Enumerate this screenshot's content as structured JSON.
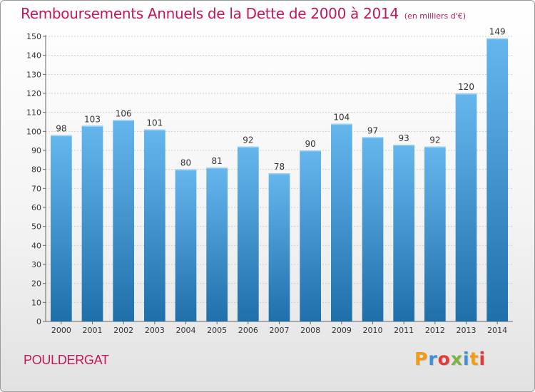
{
  "chart_data": {
    "type": "bar",
    "title": "Remboursements Annuels de la Dette de 2000 à 2014",
    "unit_note": "(en milliers d'€)",
    "categories": [
      "2000",
      "2001",
      "2002",
      "2003",
      "2004",
      "2005",
      "2006",
      "2007",
      "2008",
      "2009",
      "2010",
      "2011",
      "2012",
      "2013",
      "2014"
    ],
    "values": [
      98,
      103,
      106,
      101,
      80,
      81,
      92,
      78,
      90,
      104,
      97,
      93,
      92,
      120,
      149
    ],
    "ylim": [
      0,
      150
    ],
    "yticks": [
      0,
      10,
      20,
      30,
      40,
      50,
      60,
      70,
      80,
      90,
      100,
      110,
      120,
      130,
      140,
      150
    ],
    "xlabel": "",
    "ylabel": "",
    "grid": true
  },
  "footer": {
    "city": "POULDERGAT",
    "brand": "Proxiti",
    "brand_colors": [
      "#f39c12",
      "#3f8fd8",
      "#e53935",
      "#7cb342",
      "#3f8fd8",
      "#f39c12",
      "#e53935"
    ]
  },
  "colors": {
    "title": "#c2185b",
    "bar_top": "#66b6ee",
    "bar_bottom": "#1f6fab",
    "text": "#333333"
  }
}
